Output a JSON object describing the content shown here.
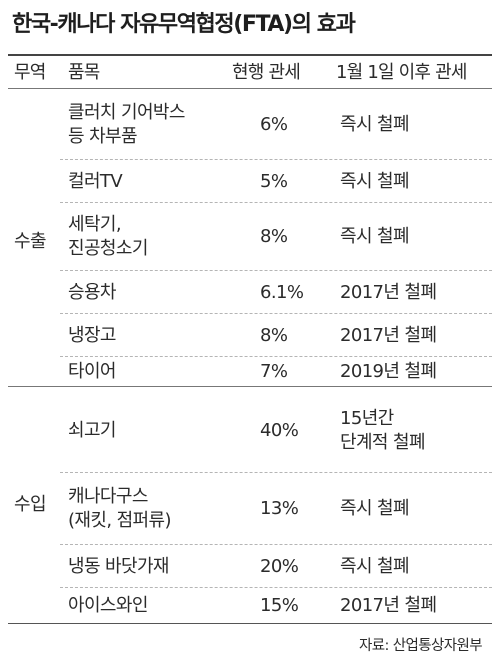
{
  "title": "한국-캐나다 자유무역협정(FTA)의 효과",
  "headers": {
    "trade": "무역",
    "item": "품목",
    "current_tariff": "현행 관세",
    "tariff_after": "1월 1일 이후 관세"
  },
  "groups": {
    "export": "수출",
    "import": "수입"
  },
  "rows": [
    {
      "group": "수출",
      "item": "클러치 기어박스\n등 차부품",
      "current": "6%",
      "after": "즉시 철폐"
    },
    {
      "group": "수출",
      "item": "컬러TV",
      "current": "5%",
      "after": "즉시 철폐"
    },
    {
      "group": "수출",
      "item": "세탁기,\n진공청소기",
      "current": "8%",
      "after": "즉시 철폐"
    },
    {
      "group": "수출",
      "item": "승용차",
      "current": "6.1%",
      "after": "2017년 철폐"
    },
    {
      "group": "수출",
      "item": "냉장고",
      "current": "8%",
      "after": "2017년 철폐"
    },
    {
      "group": "수출",
      "item": "타이어",
      "current": "7%",
      "after": "2019년 철폐"
    },
    {
      "group": "수입",
      "item": "쇠고기",
      "current": "40%",
      "after": "15년간\n단계적 철폐"
    },
    {
      "group": "수입",
      "item": "캐나다구스\n(재킷, 점퍼류)",
      "current": "13%",
      "after": "즉시 철폐"
    },
    {
      "group": "수입",
      "item": "냉동 바닷가재",
      "current": "20%",
      "after": "즉시 철폐"
    },
    {
      "group": "수입",
      "item": "아이스와인",
      "current": "15%",
      "after": "2017년 철폐"
    }
  ],
  "source": "자료: 산업통상자원부"
}
